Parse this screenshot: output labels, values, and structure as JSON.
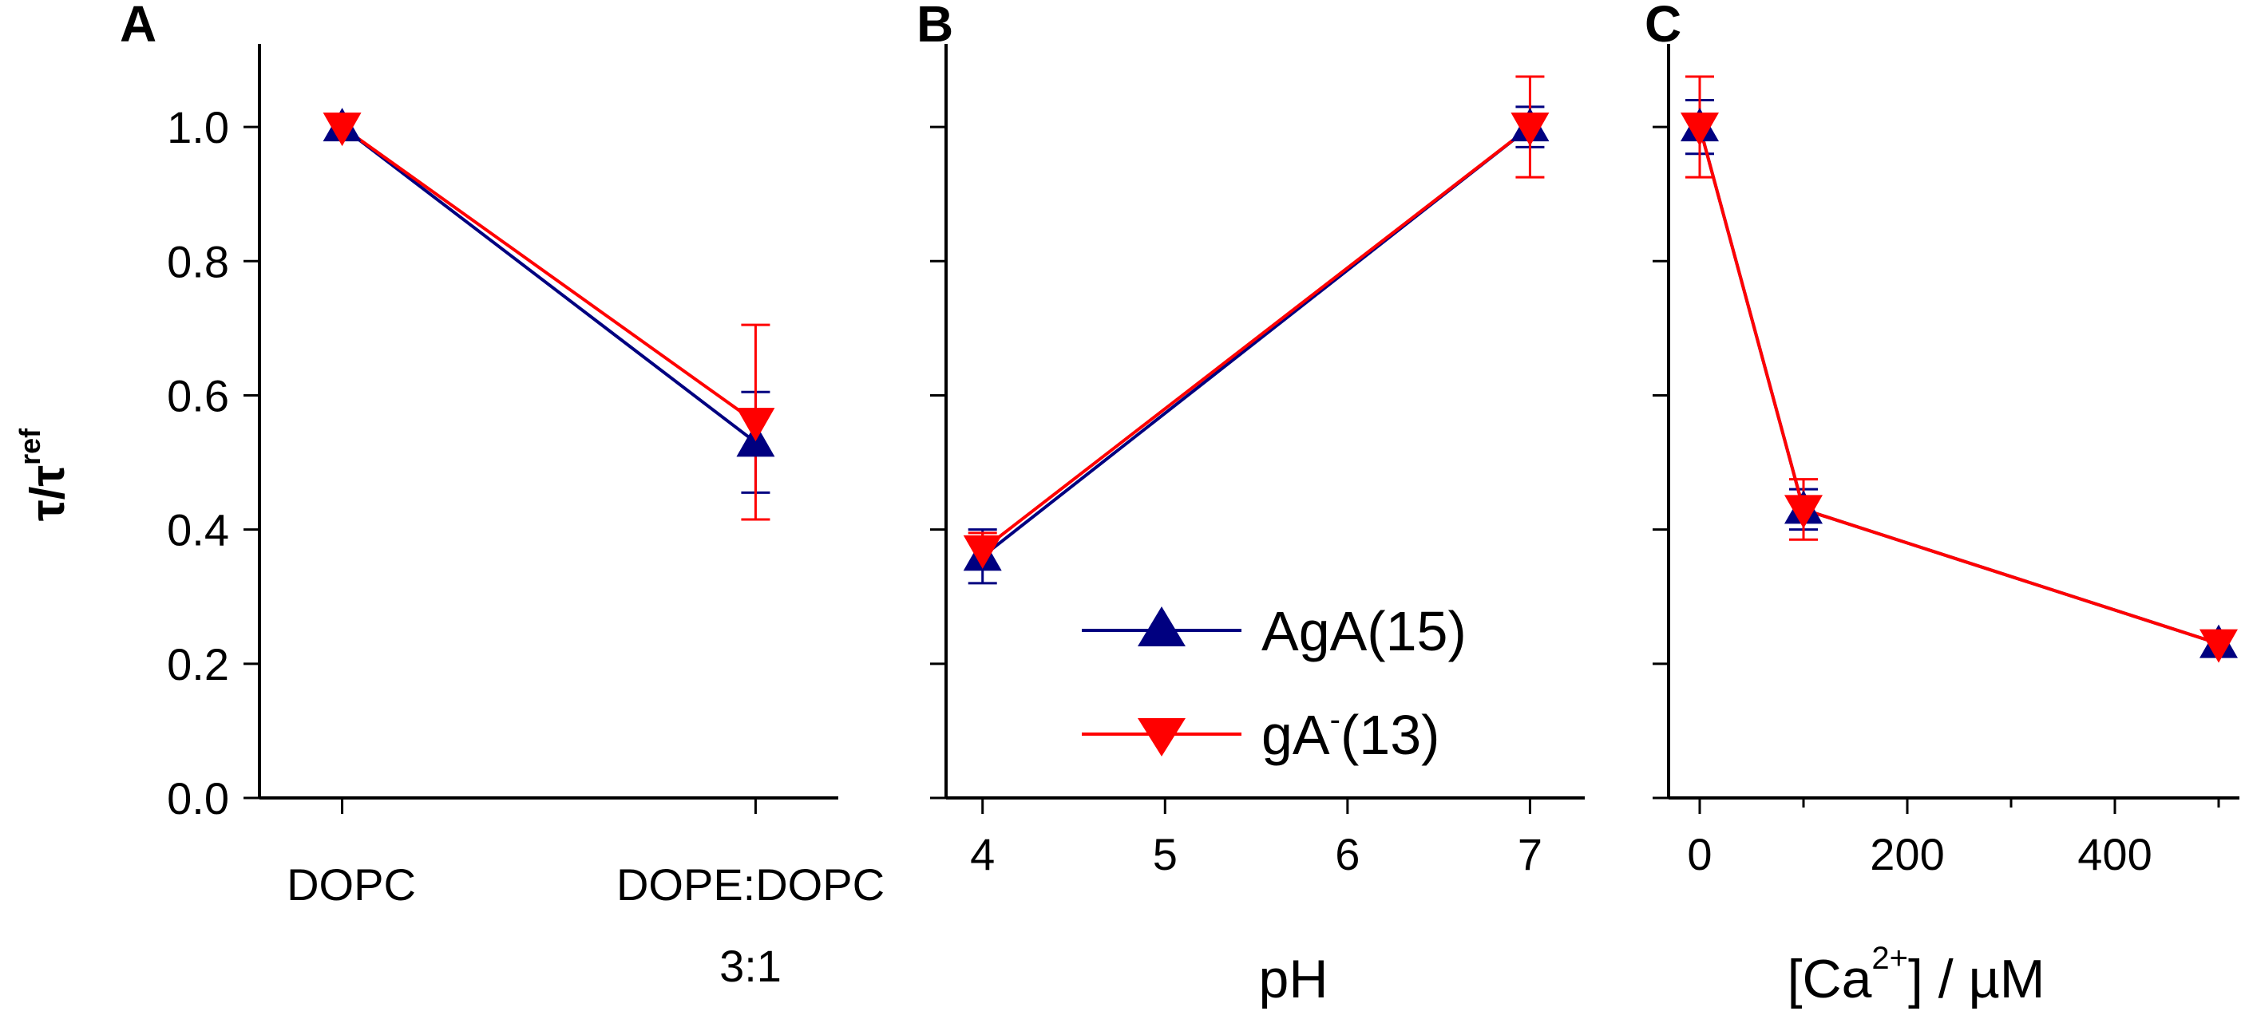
{
  "legend": {
    "series_a": "AgA(15)",
    "series_b_main": "gA",
    "series_b_sup": "-",
    "series_b_tail": "(13)"
  },
  "y_axis": {
    "label_main": "τ/τ",
    "label_sup": "ref"
  },
  "chart_data": [
    {
      "panel": "A",
      "type": "line",
      "x_scale": "categorical",
      "categories": [
        "DOPC",
        "DOPE:DOPC 3:1"
      ],
      "category_labels": [
        [
          "DOPC"
        ],
        [
          "DOPE:DOPC",
          "3:1"
        ]
      ],
      "x": [
        0,
        1
      ],
      "xlim": [
        -0.2,
        1.2
      ],
      "xticks": [
        0,
        1
      ],
      "xtick_labels": [],
      "xlabel": "",
      "xlabel_sup": "",
      "xlabel_tail": "",
      "ylim": [
        0,
        1.1
      ],
      "yticks": [
        0.0,
        0.2,
        0.4,
        0.6,
        0.8,
        1.0
      ],
      "ytick_labels": [
        "0.0",
        "0.2",
        "0.4",
        "0.6",
        "0.8",
        "1.0"
      ],
      "series": [
        {
          "name": "AgA(15)",
          "color": "#000080",
          "marker": "triangle-up",
          "values": [
            1.0,
            0.53
          ],
          "errors": [
            0.0,
            0.075
          ]
        },
        {
          "name": "gA-(13)",
          "color": "#ff0000",
          "marker": "triangle-down",
          "values": [
            1.0,
            0.56
          ],
          "errors": [
            0.0,
            0.145
          ]
        }
      ]
    },
    {
      "panel": "B",
      "type": "line",
      "x_scale": "linear",
      "x": [
        4,
        7
      ],
      "xlim": [
        3.8,
        7.3
      ],
      "xticks": [
        4,
        5,
        6,
        7
      ],
      "xtick_labels": [
        "4",
        "5",
        "6",
        "7"
      ],
      "xlabel": "pH",
      "xlabel_sup": "",
      "xlabel_tail": "",
      "ylim": [
        0,
        1.1
      ],
      "yticks": [
        0.0,
        0.2,
        0.4,
        0.6,
        0.8,
        1.0
      ],
      "ytick_labels": [],
      "series": [
        {
          "name": "AgA(15)",
          "color": "#000080",
          "marker": "triangle-up",
          "values": [
            0.36,
            1.0
          ],
          "errors": [
            0.04,
            0.03
          ]
        },
        {
          "name": "gA-(13)",
          "color": "#ff0000",
          "marker": "triangle-down",
          "values": [
            0.37,
            1.0
          ],
          "errors": [
            0.025,
            0.075
          ]
        }
      ]
    },
    {
      "panel": "C",
      "type": "line",
      "x_scale": "linear",
      "x": [
        0,
        100,
        500
      ],
      "xlim": [
        -30,
        520
      ],
      "xticks": [
        0,
        200,
        400
      ],
      "xminor": [
        100,
        300,
        500
      ],
      "xtick_labels": [
        "0",
        "200",
        "400"
      ],
      "xlabel": "[Ca",
      "xlabel_sup": "2+",
      "xlabel_tail": "] / µM",
      "ylim": [
        0,
        1.1
      ],
      "yticks": [
        0.0,
        0.2,
        0.4,
        0.6,
        0.8,
        1.0
      ],
      "ytick_labels": [],
      "series": [
        {
          "name": "AgA(15)",
          "color": "#000080",
          "marker": "triangle-up",
          "values": [
            1.0,
            0.43,
            0.23
          ],
          "errors": [
            0.04,
            0.03,
            0.015
          ]
        },
        {
          "name": "gA-(13)",
          "color": "#ff0000",
          "marker": "triangle-down",
          "values": [
            1.0,
            0.43,
            0.23
          ],
          "errors": [
            0.075,
            0.045,
            0.015
          ]
        }
      ]
    }
  ]
}
